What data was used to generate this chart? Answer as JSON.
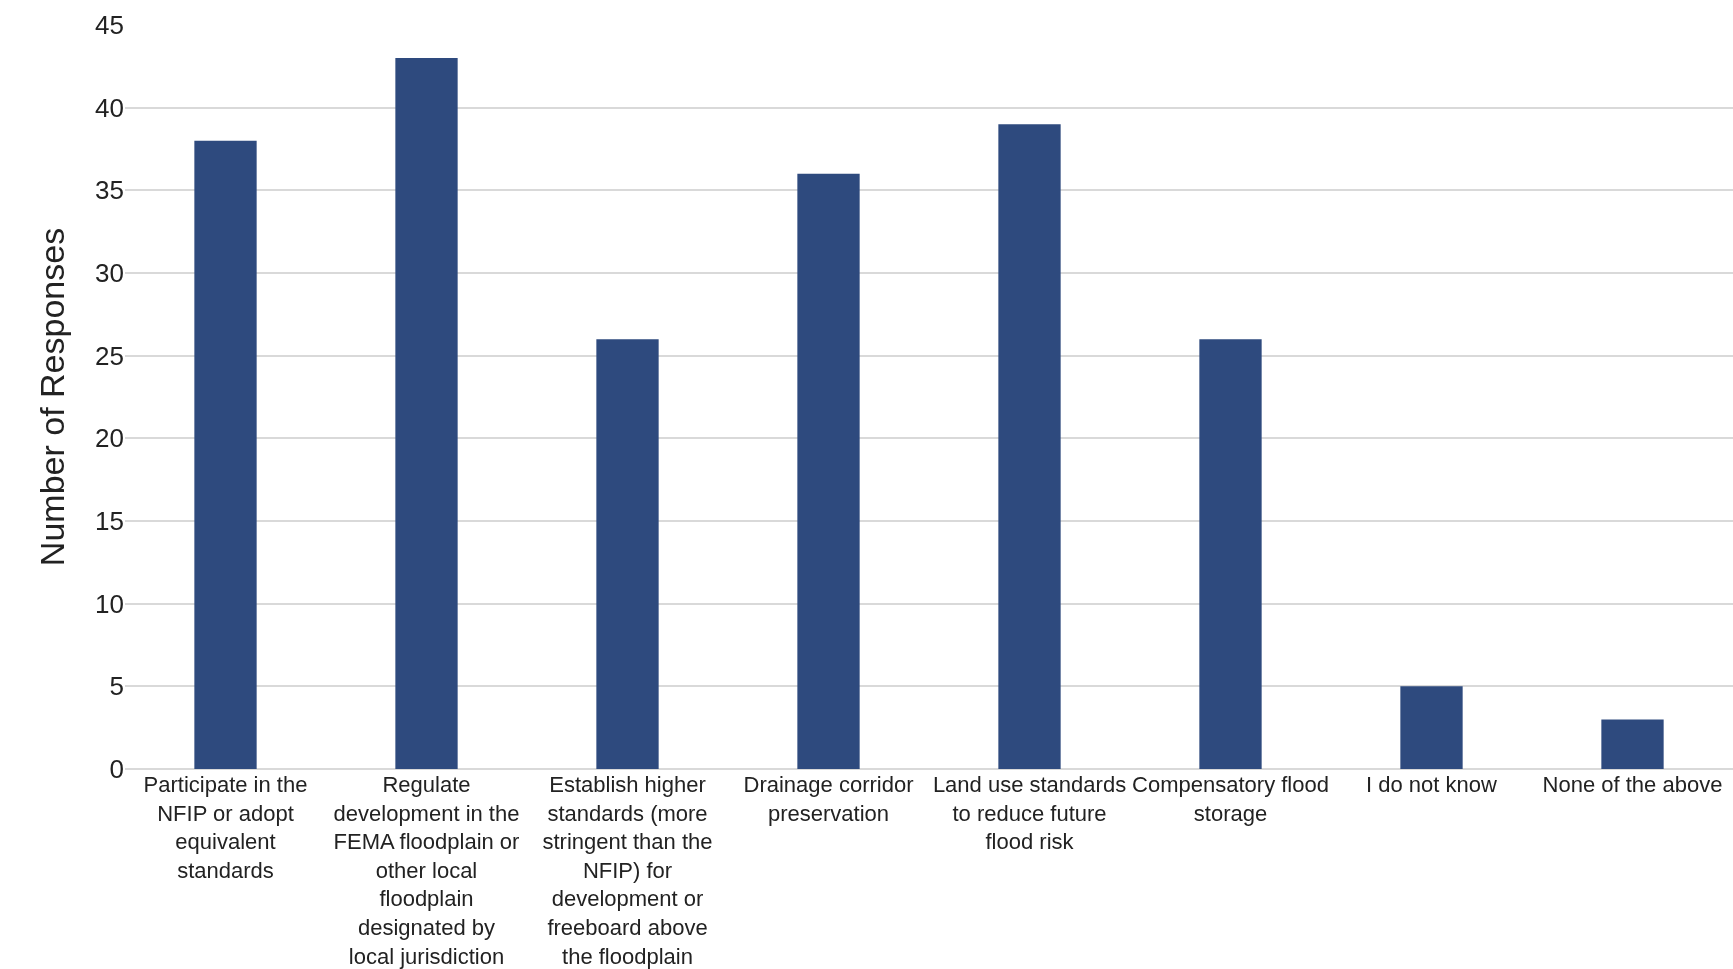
{
  "chart_data": {
    "type": "bar",
    "ylabel": "Number of Responses",
    "categories": [
      "Participate in the NFIP or adopt equivalent standards",
      "Regulate development in the FEMA floodplain or other local floodplain designated by local jurisdiction",
      "Establish higher standards (more stringent than the NFIP) for development or freeboard above the floodplain",
      "Drainage corridor preservation",
      "Land use standards to reduce future flood risk",
      "Compensatory flood storage",
      "I do not know",
      "None of the above"
    ],
    "values": [
      38,
      43,
      26,
      36,
      39,
      26,
      5,
      3
    ],
    "color": "#2e4a7e",
    "ylim": [
      0,
      45
    ],
    "yticks": [
      0,
      5,
      10,
      15,
      20,
      25,
      30,
      35,
      40,
      45
    ],
    "grid": "y"
  }
}
